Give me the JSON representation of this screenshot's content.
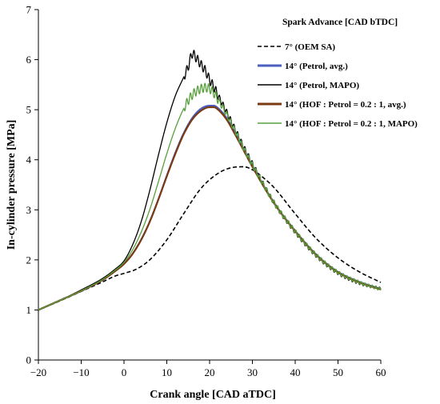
{
  "chart_data": {
    "type": "line",
    "title": "",
    "xlabel": "Crank angle [CAD aTDC]",
    "ylabel": "In-cylinder pressure [MPa]",
    "xlim": [
      -20,
      60
    ],
    "ylim": [
      0,
      7
    ],
    "xticks": [
      -20,
      -10,
      0,
      10,
      20,
      30,
      40,
      50,
      60
    ],
    "yticks": [
      0,
      1,
      2,
      3,
      4,
      5,
      6,
      7
    ],
    "xtick_labels": [
      "−20",
      "−10",
      "0",
      "10",
      "20",
      "30",
      "40",
      "50",
      "60"
    ],
    "ytick_labels": [
      "0",
      "1",
      "2",
      "3",
      "4",
      "5",
      "6",
      "7"
    ],
    "grid": false,
    "legend": {
      "title": "Spark Advance [CAD bTDC]",
      "position": "top-right"
    },
    "series": [
      {
        "name": "7° (OEM SA)",
        "color": "#000000",
        "style": "dashed",
        "x": [
          -20,
          -15,
          -10,
          -5,
          -2,
          0,
          3,
          6,
          10,
          14,
          18,
          22,
          25,
          28,
          30,
          32,
          35,
          40,
          45,
          50,
          55,
          60
        ],
        "y": [
          1.0,
          1.18,
          1.37,
          1.56,
          1.68,
          1.73,
          1.82,
          2.0,
          2.4,
          2.93,
          3.43,
          3.73,
          3.84,
          3.86,
          3.8,
          3.68,
          3.45,
          2.92,
          2.42,
          2.04,
          1.76,
          1.55
        ]
      },
      {
        "name": "14° (Petrol, avg.)",
        "color": "#4a5fbf",
        "style": "solid",
        "x": [
          -20,
          -15,
          -10,
          -5,
          -2,
          0,
          2,
          4,
          6,
          8,
          10,
          12,
          14,
          16,
          18,
          20,
          21,
          22,
          24,
          26,
          28,
          30,
          35,
          40,
          45,
          50,
          55,
          60
        ],
        "y": [
          1.0,
          1.19,
          1.38,
          1.6,
          1.78,
          1.92,
          2.12,
          2.4,
          2.76,
          3.2,
          3.68,
          4.14,
          4.54,
          4.84,
          5.02,
          5.08,
          5.08,
          5.03,
          4.83,
          4.53,
          4.2,
          3.88,
          3.15,
          2.58,
          2.1,
          1.76,
          1.56,
          1.42
        ]
      },
      {
        "name": "14° (Petrol, MAPO)",
        "color": "#000000",
        "style": "solid",
        "oscillating": true,
        "x": [
          -20,
          -15,
          -10,
          -5,
          -2,
          0,
          2,
          4,
          6,
          8,
          10,
          12,
          14,
          15,
          16,
          17,
          18,
          19,
          20,
          21,
          22,
          24,
          26,
          28,
          30,
          35,
          40,
          45,
          50,
          55,
          60
        ],
        "y": [
          1.0,
          1.19,
          1.4,
          1.63,
          1.82,
          1.98,
          2.3,
          2.76,
          3.38,
          4.08,
          4.74,
          5.28,
          5.66,
          5.86,
          6.12,
          6.02,
          5.9,
          5.78,
          5.6,
          5.45,
          5.28,
          4.95,
          4.6,
          4.25,
          3.92,
          3.15,
          2.56,
          2.08,
          1.74,
          1.54,
          1.42
        ]
      },
      {
        "name": "14° (HOF : Petrol = 0.2 : 1, avg.)",
        "color": "#7a3a12",
        "style": "solid",
        "x": [
          -20,
          -15,
          -10,
          -5,
          -2,
          0,
          2,
          4,
          6,
          8,
          10,
          12,
          14,
          16,
          18,
          20,
          21,
          22,
          24,
          26,
          28,
          30,
          35,
          40,
          45,
          50,
          55,
          60
        ],
        "y": [
          1.0,
          1.19,
          1.38,
          1.6,
          1.78,
          1.92,
          2.12,
          2.4,
          2.76,
          3.2,
          3.67,
          4.12,
          4.52,
          4.81,
          4.98,
          5.05,
          5.05,
          5.0,
          4.8,
          4.5,
          4.18,
          3.86,
          3.14,
          2.57,
          2.09,
          1.75,
          1.55,
          1.41
        ]
      },
      {
        "name": "14° (HOF : Petrol = 0.2 : 1, MAPO)",
        "color": "#58a03c",
        "style": "solid",
        "oscillating": true,
        "x": [
          -20,
          -15,
          -10,
          -5,
          -2,
          0,
          2,
          4,
          6,
          8,
          10,
          12,
          14,
          16,
          18,
          19,
          20,
          21,
          22,
          24,
          26,
          28,
          30,
          35,
          40,
          45,
          50,
          55,
          60
        ],
        "y": [
          1.0,
          1.19,
          1.38,
          1.61,
          1.8,
          1.95,
          2.2,
          2.55,
          3.0,
          3.55,
          4.12,
          4.63,
          5.03,
          5.3,
          5.42,
          5.44,
          5.42,
          5.33,
          5.2,
          4.9,
          4.57,
          4.22,
          3.9,
          3.15,
          2.57,
          2.09,
          1.75,
          1.55,
          1.41
        ]
      }
    ]
  }
}
